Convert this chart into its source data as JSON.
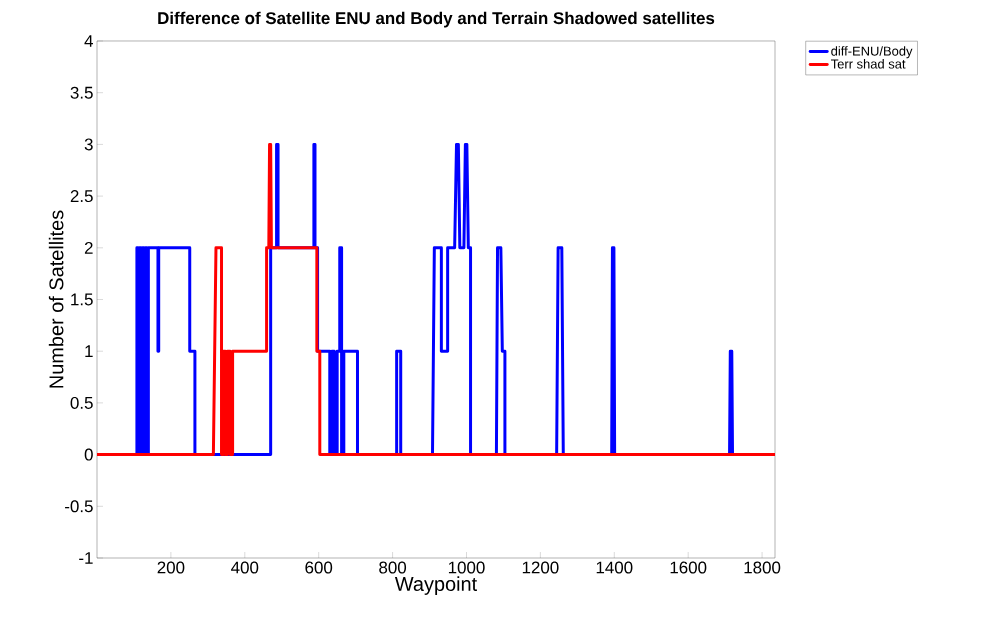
{
  "chart_data": {
    "type": "line",
    "title": "Difference of Satellite ENU and Body and Terrain Shadowed satellites",
    "xlabel": "Waypoint",
    "ylabel": "Number of Satellites",
    "xlim": [
      0,
      1835
    ],
    "ylim": [
      -1,
      4
    ],
    "xticks": [
      200,
      400,
      600,
      800,
      1000,
      1200,
      1400,
      1600,
      1800
    ],
    "yticks": [
      -1,
      -0.5,
      0,
      0.5,
      1,
      1.5,
      2,
      2.5,
      3,
      3.5,
      4
    ],
    "grid": false,
    "legend": "top right",
    "marker": "none",
    "line_style": "solid",
    "series": [
      {
        "name": "diff-ENU/Body",
        "color": "#0000ff",
        "x": [
          0,
          108,
          108,
          111,
          111,
          115,
          115,
          119,
          119,
          123,
          123,
          127,
          127,
          131,
          131,
          135,
          135,
          139,
          139,
          165,
          165,
          167,
          167,
          251,
          251,
          265,
          265,
          470,
          470,
          486,
          486,
          490,
          490,
          587,
          587,
          590,
          590,
          597,
          597,
          630,
          630,
          636,
          636,
          642,
          642,
          650,
          650,
          657,
          657,
          662,
          662,
          668,
          668,
          705,
          705,
          811,
          811,
          822,
          822,
          908,
          913,
          932,
          932,
          949,
          949,
          968,
          973,
          978,
          982,
          993,
          997,
          1001,
          1005,
          1011,
          1011,
          1081,
          1084,
          1093,
          1097,
          1104,
          1104,
          1244,
          1248,
          1258,
          1262,
          1393,
          1395,
          1399,
          1401,
          1712,
          1714,
          1718,
          1720,
          1835
        ],
        "values": [
          0,
          0,
          2,
          2,
          0,
          0,
          2,
          2,
          0,
          0,
          2,
          2,
          0,
          0,
          2,
          2,
          0,
          0,
          2,
          2,
          1,
          1,
          2,
          2,
          1,
          1,
          0,
          0,
          2,
          2,
          3,
          3,
          2,
          2,
          3,
          3,
          2,
          2,
          1,
          1,
          0,
          0,
          1,
          1,
          0,
          0,
          1,
          1,
          2,
          2,
          0,
          0,
          1,
          1,
          0,
          0,
          1,
          1,
          0,
          0,
          2,
          2,
          1,
          1,
          2,
          2,
          3,
          3,
          2,
          2,
          3,
          3,
          2,
          2,
          0,
          0,
          2,
          2,
          1,
          1,
          0,
          0,
          2,
          2,
          0,
          0,
          2,
          2,
          0,
          0,
          1,
          1,
          0,
          0
        ]
      },
      {
        "name": "Terr shad sat",
        "color": "#ff0000",
        "x": [
          0,
          315,
          322,
          337,
          337,
          342,
          342,
          347,
          347,
          353,
          353,
          360,
          360,
          367,
          367,
          378,
          459,
          459,
          465,
          467,
          470,
          472,
          595,
          595,
          603,
          603,
          1835
        ],
        "values": [
          0,
          0,
          2,
          2,
          0,
          0,
          1,
          1,
          0,
          0,
          1,
          1,
          0,
          0,
          1,
          1,
          1,
          2,
          2,
          3,
          3,
          2,
          2,
          1,
          1,
          0,
          0
        ]
      }
    ]
  }
}
